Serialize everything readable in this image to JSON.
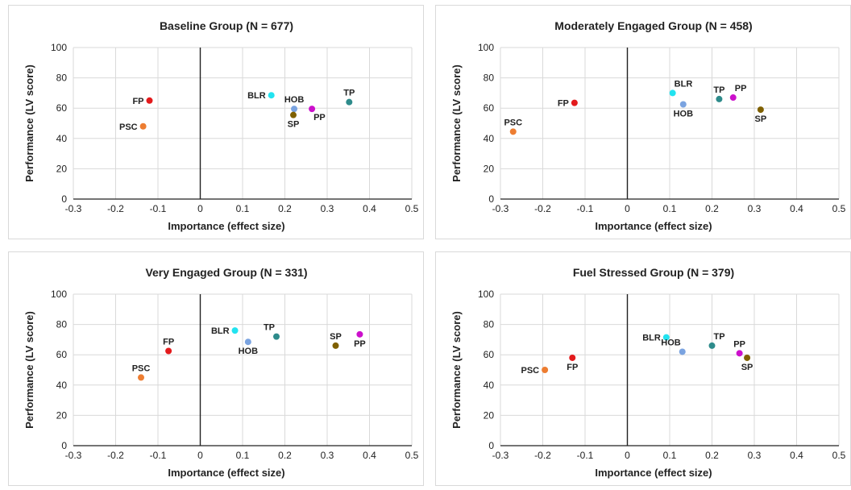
{
  "chart_data": [
    {
      "type": "scatter",
      "title": "Baseline Group (N = 677)",
      "xlabel": "Importance (effect size)",
      "ylabel": "Performance (LV score)",
      "xlim": [
        -0.3,
        0.5
      ],
      "ylim": [
        0,
        100
      ],
      "xticks": [
        "-0.3",
        "-0.2",
        "-0.1",
        "0",
        "0.1",
        "0.2",
        "0.3",
        "0.4",
        "0.5"
      ],
      "yticks": [
        "0",
        "20",
        "40",
        "60",
        "80",
        "100"
      ],
      "grid": true,
      "points": [
        {
          "label": "FP",
          "x": -0.12,
          "y": 65,
          "color": "#e31a1c",
          "label_pos": "left"
        },
        {
          "label": "PSC",
          "x": -0.135,
          "y": 48,
          "color": "#ed7d31",
          "label_pos": "left"
        },
        {
          "label": "BLR",
          "x": 0.168,
          "y": 68.5,
          "color": "#22e3f0",
          "label_pos": "left"
        },
        {
          "label": "HOB",
          "x": 0.222,
          "y": 59.5,
          "color": "#7aa3e0",
          "label_pos": "above"
        },
        {
          "label": "SP",
          "x": 0.22,
          "y": 55.5,
          "color": "#7f6000",
          "label_pos": "below"
        },
        {
          "label": "PP",
          "x": 0.264,
          "y": 59.5,
          "color": "#cc10cc",
          "label_pos": "below-right"
        },
        {
          "label": "TP",
          "x": 0.352,
          "y": 64,
          "color": "#2e8b8b",
          "label_pos": "above"
        }
      ]
    },
    {
      "type": "scatter",
      "title": "Moderately Engaged Group (N = 458)",
      "xlabel": "Importance (effect size)",
      "ylabel": "Performance (LV score)",
      "xlim": [
        -0.3,
        0.5
      ],
      "ylim": [
        0,
        100
      ],
      "xticks": [
        "-0.3",
        "-0.2",
        "-0.1",
        "0",
        "0.1",
        "0.2",
        "0.3",
        "0.4",
        "0.5"
      ],
      "yticks": [
        "0",
        "20",
        "40",
        "60",
        "80",
        "100"
      ],
      "grid": true,
      "points": [
        {
          "label": "FP",
          "x": -0.125,
          "y": 63.5,
          "color": "#e31a1c",
          "label_pos": "left"
        },
        {
          "label": "PSC",
          "x": -0.27,
          "y": 44.5,
          "color": "#ed7d31",
          "label_pos": "above"
        },
        {
          "label": "BLR",
          "x": 0.107,
          "y": 70,
          "color": "#22e3f0",
          "label_pos": "above-right"
        },
        {
          "label": "HOB",
          "x": 0.132,
          "y": 62.5,
          "color": "#7aa3e0",
          "label_pos": "below"
        },
        {
          "label": "TP",
          "x": 0.217,
          "y": 66,
          "color": "#2e8b8b",
          "label_pos": "above"
        },
        {
          "label": "PP",
          "x": 0.25,
          "y": 67,
          "color": "#cc10cc",
          "label_pos": "above-right"
        },
        {
          "label": "SP",
          "x": 0.315,
          "y": 59,
          "color": "#7f6000",
          "label_pos": "below"
        }
      ]
    },
    {
      "type": "scatter",
      "title": "Very Engaged Group (N = 331)",
      "xlabel": "Importance (effect size)",
      "ylabel": "Performance (LV score)",
      "xlim": [
        -0.3,
        0.5
      ],
      "ylim": [
        0,
        100
      ],
      "xticks": [
        "-0.3",
        "-0.2",
        "-0.1",
        "0",
        "0.1",
        "0.2",
        "0.3",
        "0.4",
        "0.5"
      ],
      "yticks": [
        "0",
        "20",
        "40",
        "60",
        "80",
        "100"
      ],
      "grid": true,
      "points": [
        {
          "label": "FP",
          "x": -0.075,
          "y": 62.5,
          "color": "#e31a1c",
          "label_pos": "above"
        },
        {
          "label": "PSC",
          "x": -0.14,
          "y": 45,
          "color": "#ed7d31",
          "label_pos": "above"
        },
        {
          "label": "BLR",
          "x": 0.082,
          "y": 76,
          "color": "#22e3f0",
          "label_pos": "left"
        },
        {
          "label": "HOB",
          "x": 0.113,
          "y": 68.5,
          "color": "#7aa3e0",
          "label_pos": "below"
        },
        {
          "label": "TP",
          "x": 0.18,
          "y": 72,
          "color": "#2e8b8b",
          "label_pos": "above-left"
        },
        {
          "label": "SP",
          "x": 0.32,
          "y": 66,
          "color": "#7f6000",
          "label_pos": "above"
        },
        {
          "label": "PP",
          "x": 0.377,
          "y": 73.5,
          "color": "#cc10cc",
          "label_pos": "below"
        }
      ]
    },
    {
      "type": "scatter",
      "title": "Fuel Stressed Group (N = 379)",
      "xlabel": "Importance (effect size)",
      "ylabel": "Performance (LV score)",
      "xlim": [
        -0.3,
        0.5
      ],
      "ylim": [
        0,
        100
      ],
      "xticks": [
        "-0.3",
        "-0.2",
        "-0.1",
        "0",
        "0.1",
        "0.2",
        "0.3",
        "0.4",
        "0.5"
      ],
      "yticks": [
        "0",
        "20",
        "40",
        "60",
        "80",
        "100"
      ],
      "grid": true,
      "points": [
        {
          "label": "FP",
          "x": -0.13,
          "y": 58,
          "color": "#e31a1c",
          "label_pos": "below"
        },
        {
          "label": "PSC",
          "x": -0.195,
          "y": 50,
          "color": "#ed7d31",
          "label_pos": "left"
        },
        {
          "label": "BLR",
          "x": 0.092,
          "y": 71.5,
          "color": "#22e3f0",
          "label_pos": "left"
        },
        {
          "label": "HOB",
          "x": 0.13,
          "y": 62,
          "color": "#7aa3e0",
          "label_pos": "above-left"
        },
        {
          "label": "TP",
          "x": 0.2,
          "y": 66,
          "color": "#2e8b8b",
          "label_pos": "above-right"
        },
        {
          "label": "PP",
          "x": 0.265,
          "y": 61,
          "color": "#cc10cc",
          "label_pos": "above"
        },
        {
          "label": "SP",
          "x": 0.283,
          "y": 58,
          "color": "#7f6000",
          "label_pos": "below"
        }
      ]
    }
  ]
}
